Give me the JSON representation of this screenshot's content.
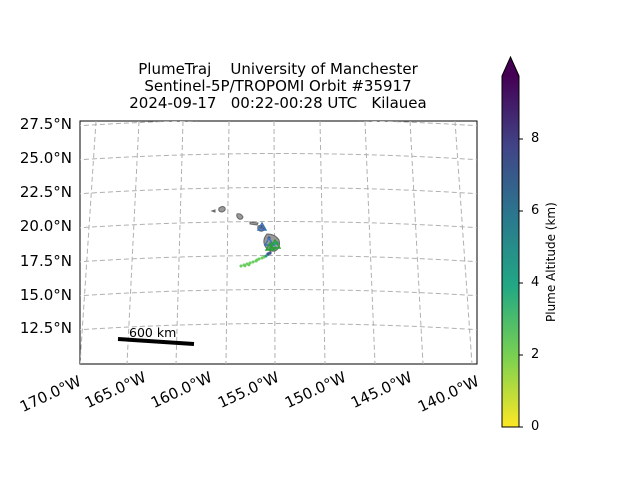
{
  "title": {
    "line1": "PlumeTraj    University of Manchester",
    "line2": "Sentinel-5P/TROPOMI Orbit #35917",
    "line3": "2024-09-17   00:22-00:28 UTC   Kilauea"
  },
  "map": {
    "lat_ticks": [
      "27.5°N",
      "25.0°N",
      "22.5°N",
      "20.0°N",
      "17.5°N",
      "15.0°N",
      "12.5°N"
    ],
    "lon_ticks": [
      "170.0°W",
      "165.0°W",
      "160.0°W",
      "155.0°W",
      "150.0°W",
      "145.0°W",
      "140.0°W"
    ],
    "gridlines": true,
    "coastline_color": "#808080",
    "scale_bar": {
      "label": "600 km"
    },
    "volcano_marker": "triangle-icon"
  },
  "colorbar": {
    "label": "Plume Altitude (km)",
    "ticks": [
      "0",
      "2",
      "4",
      "6",
      "8"
    ],
    "colormap": "viridis_r",
    "extend": "max",
    "colors": [
      "#fde725",
      "#7ad151",
      "#22a884",
      "#2a788e",
      "#414487",
      "#440154"
    ]
  }
}
